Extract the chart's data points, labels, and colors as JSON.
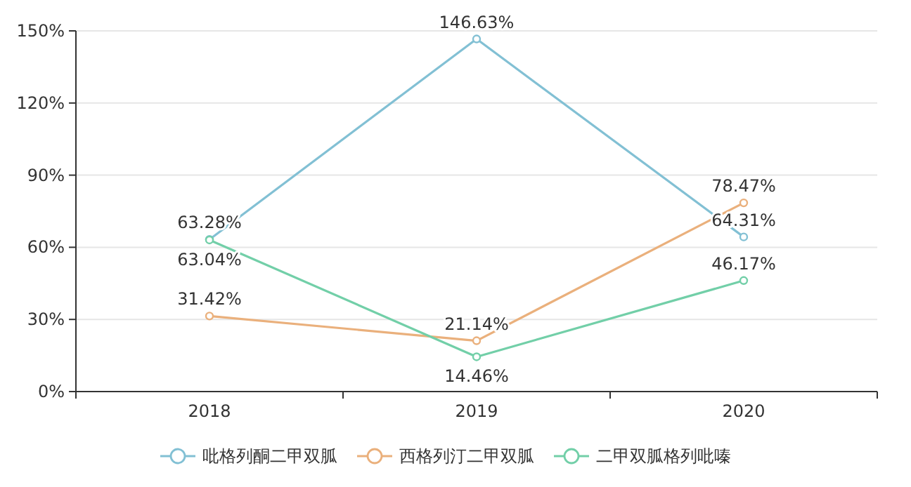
{
  "chart_data": {
    "type": "line",
    "categories": [
      "2018",
      "2019",
      "2020"
    ],
    "series": [
      {
        "name": "吡格列酮二甲双胍",
        "color": "#82c0d4",
        "values": [
          63.28,
          146.63,
          64.31
        ],
        "value_labels": [
          "63.28%",
          "146.63%",
          "64.31%"
        ]
      },
      {
        "name": "西格列汀二甲双胍",
        "color": "#eab07c",
        "values": [
          31.42,
          21.14,
          78.47
        ],
        "value_labels": [
          "31.42%",
          "21.14%",
          "78.47%"
        ]
      },
      {
        "name": "二甲双胍格列吡嗪",
        "color": "#72cfa8",
        "values": [
          63.04,
          14.46,
          46.17
        ],
        "value_labels": [
          "63.04%",
          "14.46%",
          "46.17%"
        ]
      }
    ],
    "ylim": [
      0,
      150
    ],
    "yticks": [
      {
        "value": 0,
        "label": "0%"
      },
      {
        "value": 30,
        "label": "30%"
      },
      {
        "value": 60,
        "label": "60%"
      },
      {
        "value": 90,
        "label": "90%"
      },
      {
        "value": 120,
        "label": "120%"
      },
      {
        "value": 150,
        "label": "150%"
      }
    ],
    "grid": "y",
    "legend": "bottom",
    "marker": "circle",
    "line_style": "solid"
  }
}
